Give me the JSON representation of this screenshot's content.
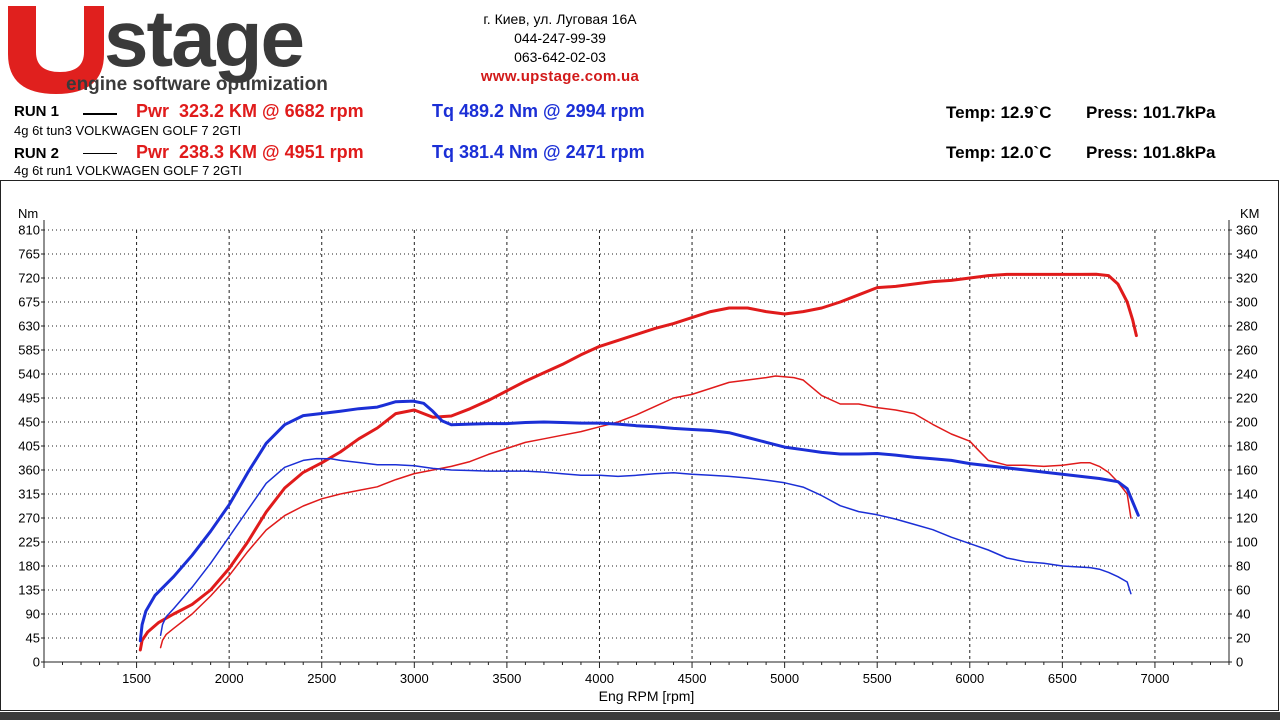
{
  "logo": {
    "text": "stage",
    "tagline": "engine software optimization",
    "letter": "U",
    "colors": {
      "red": "#e0201e",
      "dark": "#3a3a3a"
    }
  },
  "contact": {
    "address": "г. Киев, ул. Луговая 16А",
    "phone1": "044-247-99-39",
    "phone2": "063-642-02-03",
    "website": "www.upstage.com.ua"
  },
  "runs": [
    {
      "label": "RUN 1",
      "desc": "4g 6t tun3 VOLKWAGEN GOLF 7 2GTI",
      "pwr": "Pwr  323.2 KM @ 6682 rpm",
      "tq": "Tq 489.2 Nm @ 2994 rpm",
      "temp": "Temp: 12.9`C",
      "press": "Press: 101.7kPa"
    },
    {
      "label": "RUN 2",
      "desc": "4g 6t run1 VOLKWAGEN GOLF 7 2GTI",
      "pwr": "Pwr  238.3 KM @ 4951 rpm",
      "tq": "Tq 381.4 Nm @ 2471 rpm",
      "temp": "Temp: 12.0`C",
      "press": "Press: 101.8kPa"
    }
  ],
  "chart_data": {
    "type": "line",
    "xlabel": "Eng RPM [rpm]",
    "ylabel_left": "Nm",
    "ylabel_right": "KM",
    "xlim": [
      1000,
      7400
    ],
    "xticks": [
      1500,
      2000,
      2500,
      3000,
      3500,
      4000,
      4500,
      5000,
      5500,
      6000,
      6500,
      7000
    ],
    "ylim_left": [
      0,
      810
    ],
    "yticks_left": [
      0,
      45,
      90,
      135,
      180,
      225,
      270,
      315,
      360,
      405,
      450,
      495,
      540,
      585,
      630,
      675,
      720,
      765,
      810
    ],
    "ylim_right": [
      0,
      360
    ],
    "yticks_right": [
      0,
      20,
      40,
      60,
      80,
      100,
      120,
      140,
      160,
      180,
      200,
      220,
      240,
      260,
      280,
      300,
      320,
      340,
      360
    ],
    "grid": true,
    "series": [
      {
        "run": 1,
        "kind": "power",
        "axis": "right",
        "color": "#e01b1b",
        "width": 3,
        "x": [
          1520,
          1530,
          1560,
          1620,
          1700,
          1800,
          1900,
          2000,
          2100,
          2200,
          2300,
          2400,
          2500,
          2600,
          2700,
          2800,
          2900,
          3000,
          3050,
          3100,
          3200,
          3300,
          3400,
          3500,
          3600,
          3700,
          3800,
          3900,
          4000,
          4100,
          4200,
          4300,
          4400,
          4500,
          4600,
          4700,
          4800,
          4900,
          5000,
          5100,
          5200,
          5300,
          5400,
          5500,
          5600,
          5700,
          5800,
          5900,
          6000,
          6100,
          6200,
          6300,
          6400,
          6500,
          6600,
          6682,
          6750,
          6800,
          6850,
          6880,
          6900
        ],
        "y": [
          10,
          18,
          25,
          33,
          40,
          48,
          60,
          78,
          100,
          125,
          145,
          158,
          166,
          175,
          186,
          195,
          207,
          210,
          207,
          204,
          205,
          211,
          218,
          226,
          234,
          241,
          248,
          256,
          263,
          268,
          273,
          278,
          282,
          287,
          292,
          295,
          295,
          292,
          290,
          292,
          295,
          300,
          306,
          312,
          313,
          315,
          317,
          318,
          320,
          322,
          323,
          323,
          323,
          323,
          323,
          323.2,
          322,
          315,
          300,
          285,
          272
        ]
      },
      {
        "run": 2,
        "kind": "power",
        "axis": "right",
        "color": "#e01b1b",
        "width": 1.5,
        "x": [
          1630,
          1640,
          1660,
          1700,
          1800,
          1900,
          2000,
          2100,
          2200,
          2300,
          2400,
          2500,
          2600,
          2700,
          2800,
          2900,
          3000,
          3100,
          3200,
          3300,
          3400,
          3500,
          3600,
          3700,
          3800,
          3900,
          4000,
          4100,
          4200,
          4300,
          4400,
          4500,
          4600,
          4700,
          4800,
          4900,
          4951,
          5050,
          5100,
          5200,
          5300,
          5400,
          5500,
          5600,
          5700,
          5800,
          5900,
          6000,
          6050,
          6100,
          6200,
          6300,
          6400,
          6500,
          6600,
          6650,
          6700,
          6750,
          6800,
          6850,
          6870
        ],
        "y": [
          12,
          18,
          23,
          28,
          40,
          55,
          72,
          92,
          110,
          122,
          130,
          136,
          140,
          143,
          146,
          152,
          157,
          160,
          163,
          167,
          173,
          178,
          183,
          186,
          189,
          192,
          196,
          200,
          206,
          213,
          220,
          223,
          228,
          233,
          235,
          237,
          238.3,
          237,
          235,
          222,
          215,
          215,
          212,
          210,
          207,
          198,
          190,
          184,
          176,
          168,
          164,
          164,
          163,
          164,
          166,
          166,
          163,
          158,
          150,
          140,
          120
        ]
      },
      {
        "run": 1,
        "kind": "torque",
        "axis": "left",
        "color": "#1b2fd6",
        "width": 3,
        "x": [
          1520,
          1530,
          1550,
          1600,
          1700,
          1800,
          1900,
          2000,
          2100,
          2200,
          2300,
          2400,
          2500,
          2600,
          2700,
          2800,
          2900,
          2994,
          3050,
          3100,
          3150,
          3200,
          3300,
          3400,
          3500,
          3600,
          3700,
          3800,
          3900,
          4000,
          4100,
          4200,
          4300,
          4400,
          4500,
          4600,
          4700,
          4800,
          4900,
          5000,
          5100,
          5200,
          5300,
          5400,
          5500,
          5600,
          5700,
          5800,
          5900,
          6000,
          6100,
          6200,
          6300,
          6400,
          6500,
          6600,
          6700,
          6800,
          6850,
          6880,
          6910
        ],
        "y": [
          40,
          70,
          95,
          125,
          160,
          200,
          245,
          295,
          355,
          410,
          445,
          462,
          466,
          470,
          475,
          478,
          488,
          489.2,
          485,
          470,
          452,
          445,
          446,
          447,
          447,
          449,
          450,
          449,
          448,
          448,
          446,
          443,
          441,
          438,
          436,
          434,
          430,
          421,
          412,
          403,
          398,
          393,
          390,
          390,
          391,
          388,
          384,
          381,
          378,
          372,
          368,
          364,
          360,
          356,
          352,
          348,
          344,
          338,
          325,
          300,
          275
        ]
      },
      {
        "run": 2,
        "kind": "torque",
        "axis": "left",
        "color": "#1b2fd6",
        "width": 1.5,
        "x": [
          1630,
          1640,
          1660,
          1700,
          1800,
          1900,
          2000,
          2100,
          2200,
          2300,
          2400,
          2471,
          2550,
          2600,
          2700,
          2800,
          2900,
          3000,
          3100,
          3200,
          3300,
          3400,
          3500,
          3600,
          3700,
          3800,
          3900,
          4000,
          4100,
          4200,
          4300,
          4400,
          4500,
          4600,
          4700,
          4800,
          4900,
          5000,
          5100,
          5200,
          5300,
          5400,
          5500,
          5600,
          5700,
          5800,
          5900,
          6000,
          6100,
          6200,
          6300,
          6400,
          6500,
          6600,
          6650,
          6700,
          6750,
          6800,
          6850,
          6870
        ],
        "y": [
          50,
          70,
          85,
          100,
          140,
          185,
          235,
          285,
          335,
          365,
          378,
          381.4,
          381,
          378,
          374,
          370,
          370,
          368,
          363,
          360,
          359,
          358,
          358,
          358,
          356,
          353,
          350,
          350,
          348,
          350,
          353,
          355,
          352,
          350,
          348,
          345,
          341,
          336,
          328,
          312,
          293,
          282,
          276,
          268,
          258,
          248,
          234,
          222,
          210,
          195,
          188,
          185,
          180,
          178,
          177,
          174,
          168,
          160,
          150,
          128
        ]
      }
    ]
  }
}
